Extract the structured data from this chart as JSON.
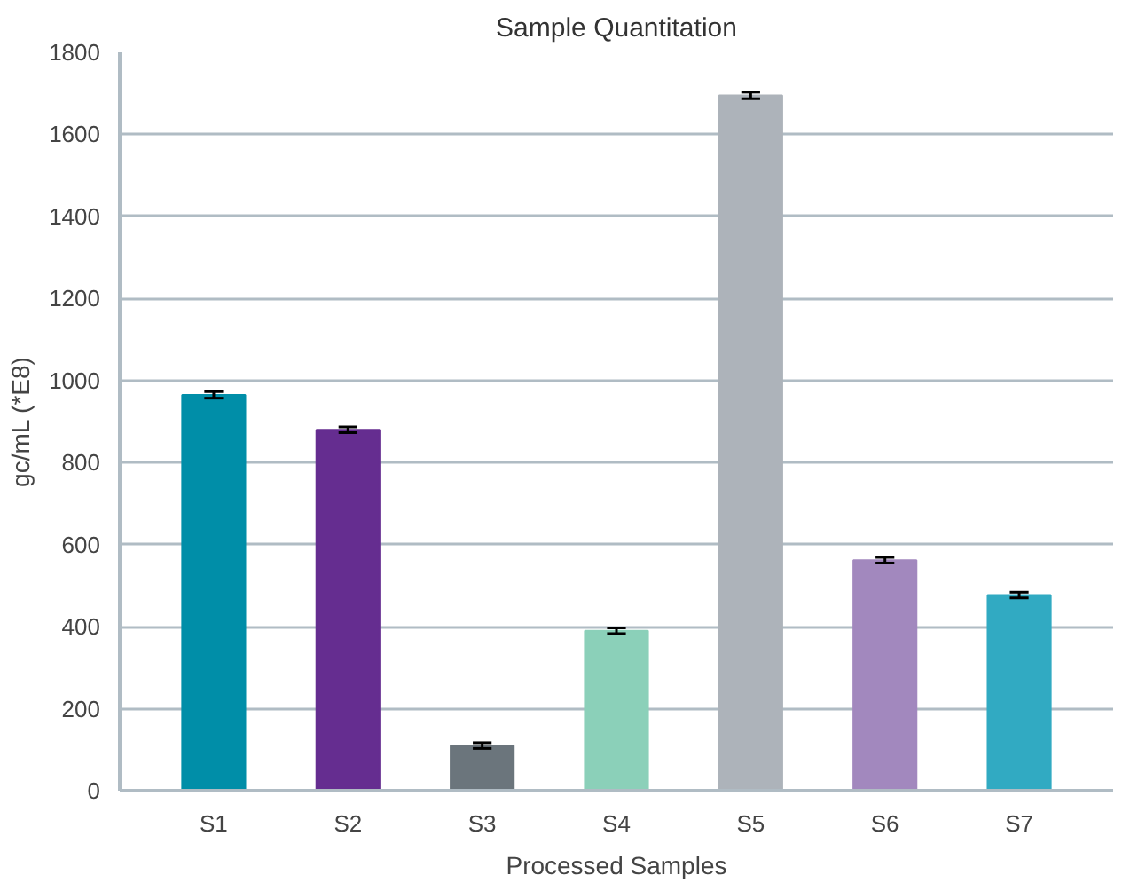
{
  "chart_data": {
    "type": "bar",
    "title": "Sample Quantitation",
    "xlabel": "Processed Samples",
    "ylabel": "gc/mL (*E8)",
    "categories": [
      "S1",
      "S2",
      "S3",
      "S4",
      "S5",
      "S6",
      "S7"
    ],
    "values": [
      965,
      880,
      110,
      390,
      1695,
      562,
      477
    ],
    "errors": [
      8,
      7,
      7,
      7,
      8,
      7,
      7
    ],
    "colors": [
      "#008ea8",
      "#652d90",
      "#6b757c",
      "#8bd0b9",
      "#adb3ba",
      "#a288be",
      "#31aac2"
    ],
    "ylim": [
      0,
      1800
    ],
    "yticks": [
      0,
      200,
      400,
      600,
      800,
      1000,
      1200,
      1400,
      1600,
      1800
    ],
    "grid": "y"
  }
}
